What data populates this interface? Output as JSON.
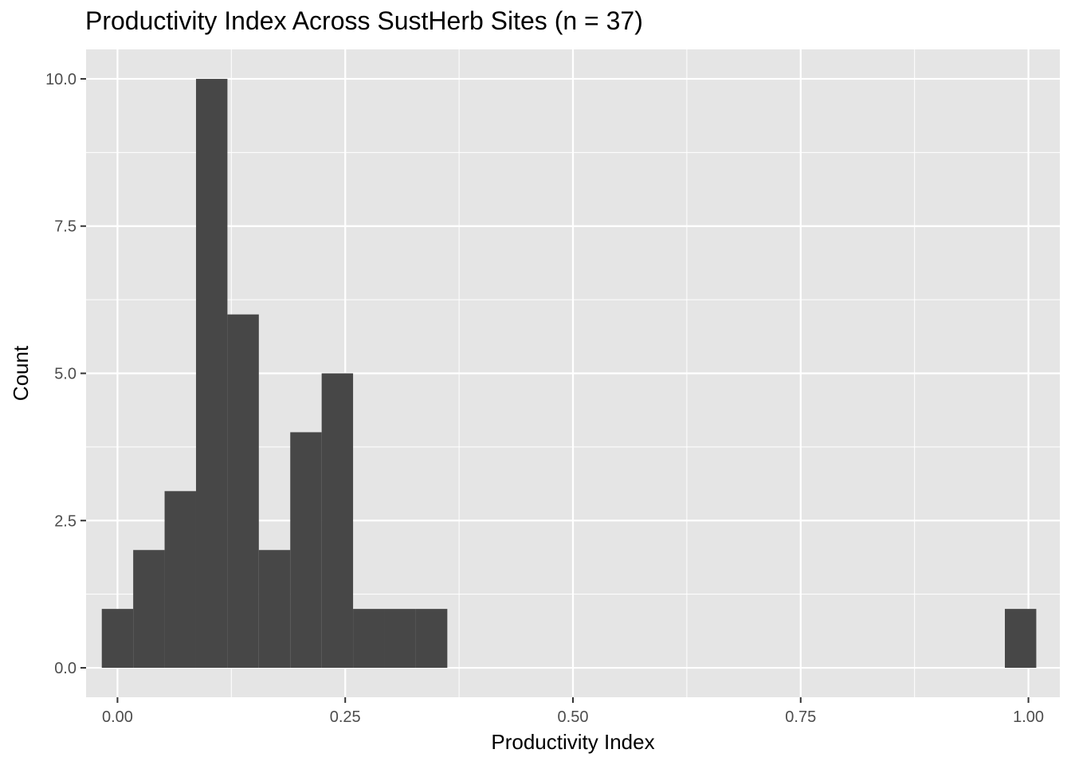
{
  "chart_data": {
    "type": "bar",
    "subtype": "histogram",
    "title": "Productivity Index Across SustHerb Sites (n = 37)",
    "xlabel": "Productivity Index",
    "ylabel": "Count",
    "xlim": [
      -0.0345,
      1.0345
    ],
    "ylim": [
      -0.5,
      10.5
    ],
    "x_ticks": [
      0.0,
      0.25,
      0.5,
      0.75,
      1.0
    ],
    "x_tick_labels": [
      "0.00",
      "0.25",
      "0.50",
      "0.75",
      "1.00"
    ],
    "y_ticks": [
      0,
      2.5,
      5,
      7.5,
      10
    ],
    "y_tick_labels": [
      "0.0",
      "2.5",
      "5.0",
      "7.5",
      "10.0"
    ],
    "grid": true,
    "background_color": "#e5e5e5",
    "bar_color": "#474747",
    "grid_color": "#ffffff",
    "bins": [
      {
        "x0": -0.01724,
        "x1": 0.01724,
        "count": 1
      },
      {
        "x0": 0.01724,
        "x1": 0.05172,
        "count": 2
      },
      {
        "x0": 0.05172,
        "x1": 0.08621,
        "count": 3
      },
      {
        "x0": 0.08621,
        "x1": 0.12069,
        "count": 10
      },
      {
        "x0": 0.12069,
        "x1": 0.15517,
        "count": 6
      },
      {
        "x0": 0.15517,
        "x1": 0.18966,
        "count": 2
      },
      {
        "x0": 0.18966,
        "x1": 0.22414,
        "count": 4
      },
      {
        "x0": 0.22414,
        "x1": 0.25862,
        "count": 5
      },
      {
        "x0": 0.25862,
        "x1": 0.2931,
        "count": 1
      },
      {
        "x0": 0.2931,
        "x1": 0.32759,
        "count": 1
      },
      {
        "x0": 0.32759,
        "x1": 0.36207,
        "count": 1
      },
      {
        "x0": 0.97414,
        "x1": 1.00862,
        "count": 1
      }
    ]
  }
}
